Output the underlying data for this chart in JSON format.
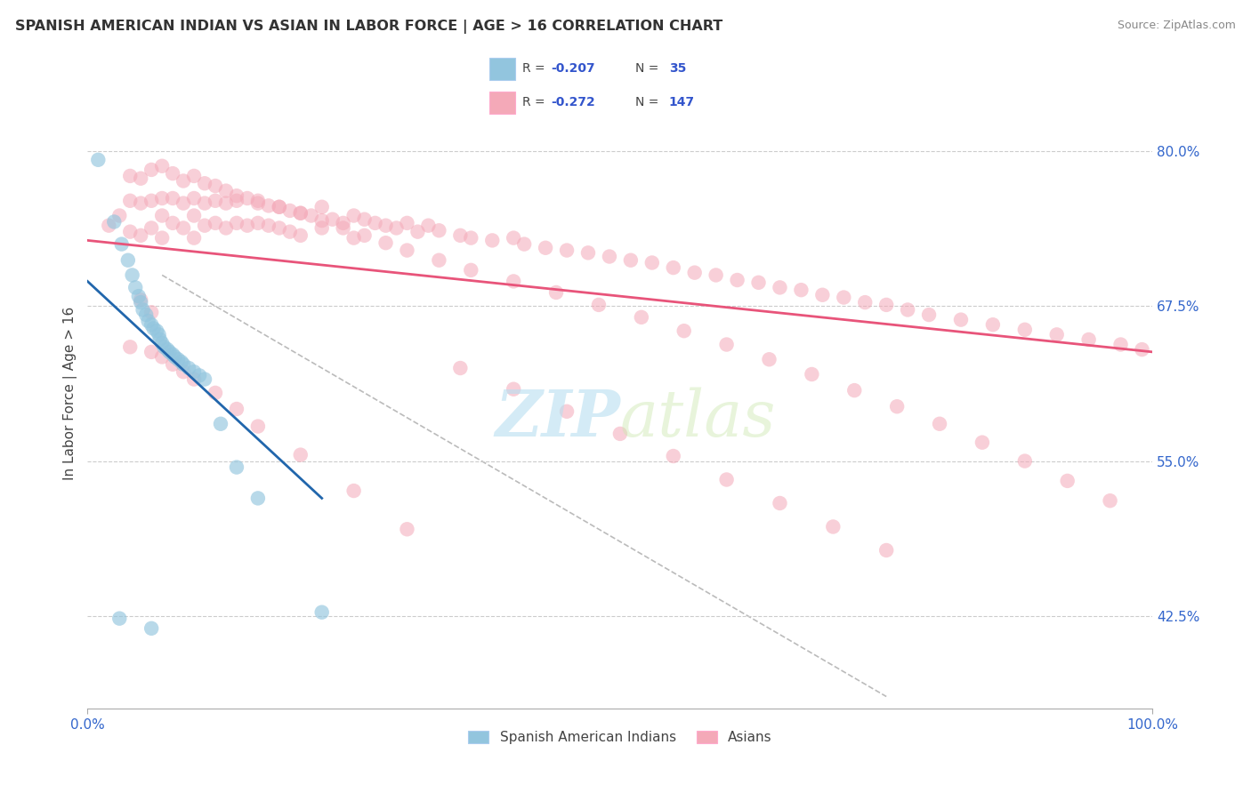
{
  "title": "SPANISH AMERICAN INDIAN VS ASIAN IN LABOR FORCE | AGE > 16 CORRELATION CHART",
  "source_text": "Source: ZipAtlas.com",
  "ylabel": "In Labor Force | Age > 16",
  "xlim": [
    0.0,
    1.0
  ],
  "ylim": [
    0.35,
    0.86
  ],
  "yticks": [
    0.425,
    0.55,
    0.675,
    0.8
  ],
  "ytick_labels": [
    "42.5%",
    "55.0%",
    "67.5%",
    "80.0%"
  ],
  "xticks": [
    0.0,
    1.0
  ],
  "xtick_labels": [
    "0.0%",
    "100.0%"
  ],
  "legend_label1": "Spanish American Indians",
  "legend_label2": "Asians",
  "blue_color": "#92c5de",
  "pink_color": "#f4a9b8",
  "blue_line_color": "#2166ac",
  "pink_line_color": "#e8547a",
  "background_color": "#ffffff",
  "grid_color": "#cccccc",
  "watermark_color": "#cce8f0",
  "blue_dots_x": [
    0.01,
    0.025,
    0.032,
    0.038,
    0.042,
    0.045,
    0.048,
    0.05,
    0.052,
    0.055,
    0.057,
    0.06,
    0.062,
    0.065,
    0.067,
    0.068,
    0.07,
    0.072,
    0.075,
    0.077,
    0.08,
    0.082,
    0.085,
    0.088,
    0.09,
    0.095,
    0.1,
    0.105,
    0.11,
    0.125,
    0.14,
    0.16,
    0.22,
    0.03,
    0.06
  ],
  "blue_dots_y": [
    0.793,
    0.743,
    0.725,
    0.712,
    0.7,
    0.69,
    0.683,
    0.678,
    0.672,
    0.668,
    0.663,
    0.66,
    0.657,
    0.655,
    0.652,
    0.648,
    0.645,
    0.642,
    0.64,
    0.638,
    0.636,
    0.634,
    0.632,
    0.63,
    0.628,
    0.625,
    0.622,
    0.619,
    0.616,
    0.58,
    0.545,
    0.52,
    0.428,
    0.423,
    0.415
  ],
  "pink_dots_x": [
    0.02,
    0.03,
    0.04,
    0.04,
    0.05,
    0.05,
    0.06,
    0.06,
    0.07,
    0.07,
    0.07,
    0.08,
    0.08,
    0.09,
    0.09,
    0.1,
    0.1,
    0.1,
    0.11,
    0.11,
    0.12,
    0.12,
    0.13,
    0.13,
    0.14,
    0.14,
    0.15,
    0.15,
    0.16,
    0.16,
    0.17,
    0.17,
    0.18,
    0.18,
    0.19,
    0.19,
    0.2,
    0.2,
    0.21,
    0.22,
    0.22,
    0.23,
    0.24,
    0.25,
    0.25,
    0.26,
    0.27,
    0.28,
    0.29,
    0.3,
    0.31,
    0.32,
    0.33,
    0.35,
    0.36,
    0.38,
    0.4,
    0.41,
    0.43,
    0.45,
    0.47,
    0.49,
    0.51,
    0.53,
    0.55,
    0.57,
    0.59,
    0.61,
    0.63,
    0.65,
    0.67,
    0.69,
    0.71,
    0.73,
    0.75,
    0.77,
    0.79,
    0.82,
    0.85,
    0.88,
    0.91,
    0.94,
    0.97,
    0.99,
    0.04,
    0.05,
    0.06,
    0.07,
    0.08,
    0.09,
    0.1,
    0.11,
    0.12,
    0.13,
    0.14,
    0.16,
    0.18,
    0.2,
    0.22,
    0.24,
    0.26,
    0.28,
    0.3,
    0.33,
    0.36,
    0.4,
    0.44,
    0.48,
    0.52,
    0.56,
    0.6,
    0.64,
    0.68,
    0.72,
    0.76,
    0.8,
    0.84,
    0.88,
    0.92,
    0.96,
    0.04,
    0.06,
    0.07,
    0.08,
    0.09,
    0.1,
    0.12,
    0.14,
    0.16,
    0.2,
    0.25,
    0.3,
    0.05,
    0.06,
    0.35,
    0.4,
    0.45,
    0.5,
    0.55,
    0.6,
    0.65,
    0.7,
    0.75
  ],
  "pink_dots_y": [
    0.74,
    0.748,
    0.76,
    0.735,
    0.758,
    0.732,
    0.76,
    0.738,
    0.762,
    0.748,
    0.73,
    0.762,
    0.742,
    0.758,
    0.738,
    0.762,
    0.748,
    0.73,
    0.758,
    0.74,
    0.76,
    0.742,
    0.758,
    0.738,
    0.76,
    0.742,
    0.762,
    0.74,
    0.758,
    0.742,
    0.756,
    0.74,
    0.755,
    0.738,
    0.752,
    0.735,
    0.75,
    0.732,
    0.748,
    0.755,
    0.738,
    0.745,
    0.742,
    0.748,
    0.73,
    0.745,
    0.742,
    0.74,
    0.738,
    0.742,
    0.735,
    0.74,
    0.736,
    0.732,
    0.73,
    0.728,
    0.73,
    0.725,
    0.722,
    0.72,
    0.718,
    0.715,
    0.712,
    0.71,
    0.706,
    0.702,
    0.7,
    0.696,
    0.694,
    0.69,
    0.688,
    0.684,
    0.682,
    0.678,
    0.676,
    0.672,
    0.668,
    0.664,
    0.66,
    0.656,
    0.652,
    0.648,
    0.644,
    0.64,
    0.78,
    0.778,
    0.785,
    0.788,
    0.782,
    0.776,
    0.78,
    0.774,
    0.772,
    0.768,
    0.764,
    0.76,
    0.755,
    0.75,
    0.744,
    0.738,
    0.732,
    0.726,
    0.72,
    0.712,
    0.704,
    0.695,
    0.686,
    0.676,
    0.666,
    0.655,
    0.644,
    0.632,
    0.62,
    0.607,
    0.594,
    0.58,
    0.565,
    0.55,
    0.534,
    0.518,
    0.642,
    0.638,
    0.634,
    0.628,
    0.622,
    0.616,
    0.605,
    0.592,
    0.578,
    0.555,
    0.526,
    0.495,
    0.68,
    0.67,
    0.625,
    0.608,
    0.59,
    0.572,
    0.554,
    0.535,
    0.516,
    0.497,
    0.478
  ],
  "blue_line_x0": 0.0,
  "blue_line_x1": 0.22,
  "blue_line_y0": 0.695,
  "blue_line_y1": 0.52,
  "pink_line_x0": 0.0,
  "pink_line_x1": 1.0,
  "pink_line_y0": 0.728,
  "pink_line_y1": 0.638,
  "gray_line_x0": 0.07,
  "gray_line_x1": 0.75,
  "gray_line_y0": 0.7,
  "gray_line_y1": 0.36
}
